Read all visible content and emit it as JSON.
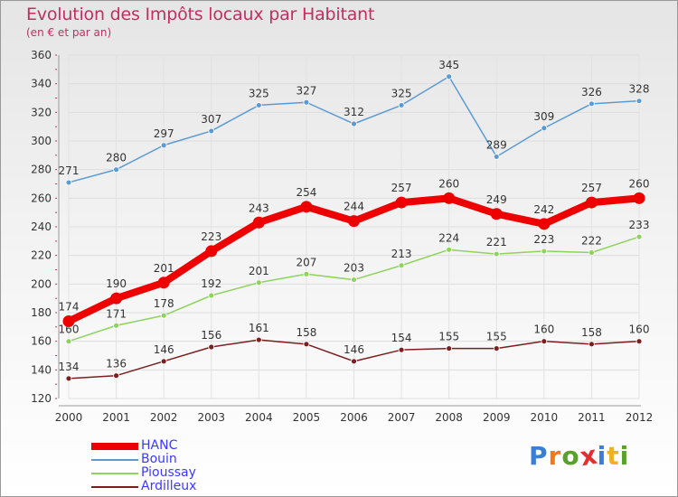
{
  "header": {
    "title": "Evolution des Impôts locaux par Habitant",
    "subtitle": "(en € et par an)"
  },
  "logo": {
    "text": "Proxiti",
    "letter_colors": [
      "#3a7fd5",
      "#f07a1a",
      "#5aa02c",
      "#e03030",
      "#3a7fd5",
      "#f0b020",
      "#5aa02c"
    ]
  },
  "chart_data": {
    "type": "line",
    "title": "Evolution des Impôts locaux par Habitant",
    "subtitle": "(en € et par an)",
    "xlabel": "",
    "ylabel": "",
    "x": [
      "2000",
      "2001",
      "2002",
      "2003",
      "2004",
      "2005",
      "2006",
      "2007",
      "2008",
      "2009",
      "2010",
      "2011",
      "2012"
    ],
    "ylim": [
      120,
      360
    ],
    "yticks": [
      120,
      140,
      160,
      180,
      200,
      220,
      240,
      260,
      280,
      300,
      320,
      340,
      360
    ],
    "grid": "horizontal",
    "legend_position": "bottom-left",
    "series": [
      {
        "name": "HANC",
        "color": "#ee0000",
        "values": [
          174,
          190,
          201,
          223,
          243,
          254,
          244,
          257,
          260,
          249,
          242,
          257,
          260
        ]
      },
      {
        "name": "Bouin",
        "color": "#5b9bd5",
        "values": [
          271,
          280,
          297,
          307,
          325,
          327,
          312,
          325,
          345,
          289,
          309,
          326,
          328
        ]
      },
      {
        "name": "Pioussay",
        "color": "#8fd35f",
        "values": [
          160,
          171,
          178,
          192,
          201,
          207,
          203,
          213,
          224,
          221,
          223,
          222,
          233
        ]
      },
      {
        "name": "Ardilleux",
        "color": "#7a1f1f",
        "values": [
          134,
          136,
          146,
          156,
          161,
          158,
          146,
          154,
          155,
          155,
          160,
          158,
          160
        ]
      }
    ]
  }
}
